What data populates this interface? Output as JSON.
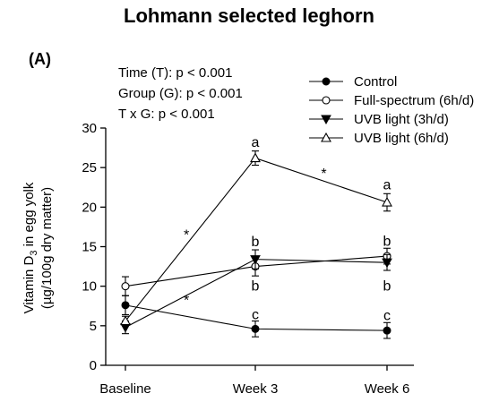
{
  "chart_data": {
    "type": "line",
    "title": "Lohmann selected leghorn",
    "panel_label": "(A)",
    "stats": [
      "Time (T): p < 0.001",
      "Group (G): p < 0.001",
      "T x G: p < 0.001"
    ],
    "ylabel_line1_main": "Vitamin D",
    "ylabel_line1_sub": "3",
    "ylabel_line1_tail": " in egg yolk",
    "ylabel_line2": "(µg/100g dry matter)",
    "xlabel": "",
    "categories": [
      "Baseline",
      "Week 3",
      "Week 6"
    ],
    "ylim": [
      0,
      30
    ],
    "yticks": [
      0,
      5,
      10,
      15,
      20,
      25,
      30
    ],
    "grid": false,
    "legend_position": "top-right",
    "series": [
      {
        "name": "Control",
        "marker": "circle-filled",
        "values": [
          7.6,
          4.6,
          4.4
        ],
        "errors": [
          1.2,
          1.0,
          1.0
        ]
      },
      {
        "name": "Full-spectrum (6h/d)",
        "marker": "circle-open",
        "values": [
          10.0,
          12.5,
          13.8
        ],
        "errors": [
          1.2,
          1.2,
          1.0
        ]
      },
      {
        "name": "UVB light (3h/d)",
        "marker": "triangle-down-filled",
        "values": [
          4.8,
          13.4,
          13.0
        ],
        "errors": [
          0.8,
          1.2,
          1.0
        ]
      },
      {
        "name": "UVB light (6h/d)",
        "marker": "triangle-up-open",
        "values": [
          5.6,
          26.2,
          20.6
        ],
        "errors": [
          0.6,
          0.9,
          1.1
        ]
      }
    ],
    "annotations": [
      {
        "text": "a",
        "category": 1,
        "y": 28.2
      },
      {
        "text": "b",
        "category": 1,
        "y": 15.6
      },
      {
        "text": "b",
        "category": 1,
        "y": 10.0
      },
      {
        "text": "c",
        "category": 1,
        "y": 6.4
      },
      {
        "text": "a",
        "category": 2,
        "y": 22.8
      },
      {
        "text": "b",
        "category": 2,
        "y": 15.7
      },
      {
        "text": "b",
        "category": 2,
        "y": 10.0
      },
      {
        "text": "c",
        "category": 2,
        "y": 6.3
      },
      {
        "text": "*",
        "category": 0.47,
        "y": 16.5
      },
      {
        "text": "*",
        "category": 0.47,
        "y": 8.2
      },
      {
        "text": "*",
        "category": 1.52,
        "y": 24.2
      }
    ]
  }
}
